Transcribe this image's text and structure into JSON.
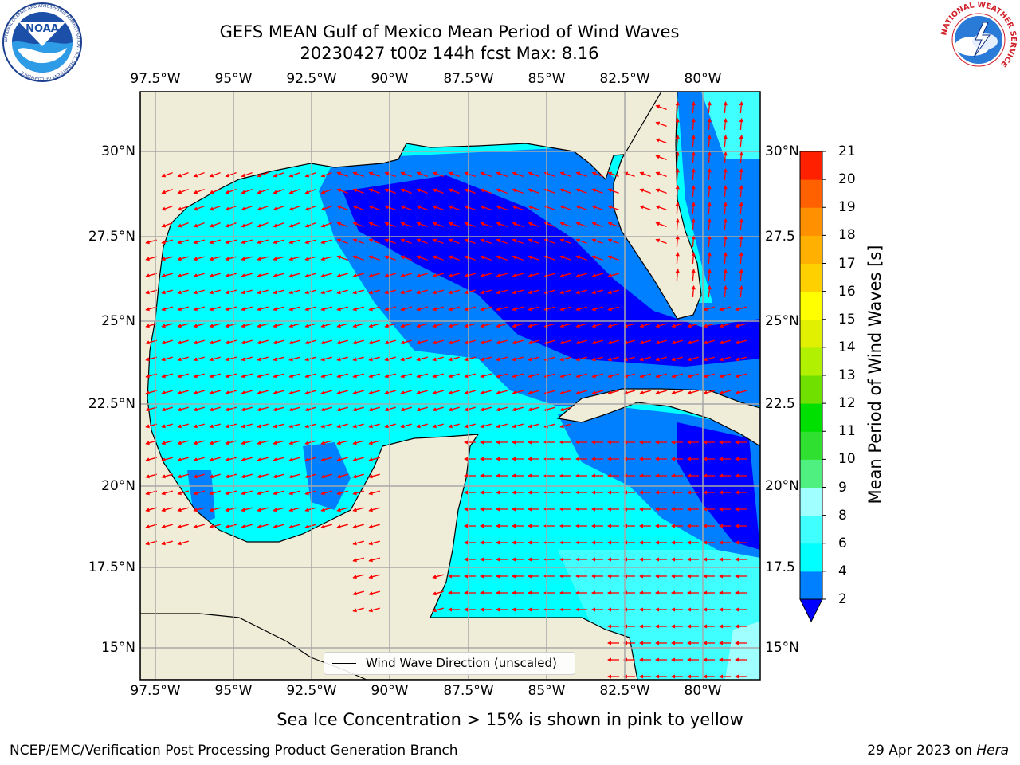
{
  "title": {
    "line1": "GEFS MEAN Gulf of Mexico Mean Period of Wind Waves",
    "line2": "20230427 t00z 144h fcst   Max: 8.16"
  },
  "logos": {
    "noaa_text": "NOAA",
    "noaa_ring": "NATIONAL OCEANIC AND ATMOSPHERIC ADMINISTRATION · U.S. DEPARTMENT OF COMMERCE",
    "nws_ring": "NATIONAL WEATHER SERVICE"
  },
  "map": {
    "lon_ticks": [
      "97.5°W",
      "95°W",
      "92.5°W",
      "90°W",
      "87.5°W",
      "85°W",
      "82.5°W",
      "80°W"
    ],
    "lat_ticks_left": [
      "30°N",
      "27.5°N",
      "25°N",
      "22.5°N",
      "20°N",
      "17.5°N",
      "15°N"
    ],
    "lat_ticks_right": [
      "30°N",
      "27.5",
      "25°N",
      "22.5",
      "20°N",
      "17.5",
      "15°N"
    ],
    "legend_label": "Wind Wave Direction (unscaled)",
    "land_color": "#efecd8",
    "arrow_color": "#ff0000"
  },
  "colorbar": {
    "label": "Mean Period of Wind Waves [s]",
    "ticks": [
      "2",
      "4",
      "6",
      "8",
      "9",
      "10",
      "11",
      "12",
      "13",
      "14",
      "15",
      "16",
      "17",
      "18",
      "19",
      "20",
      "21"
    ],
    "colors": [
      "#0000ff",
      "#0080ff",
      "#00ffff",
      "#40ffff",
      "#a0ffff",
      "#50f080",
      "#30e030",
      "#00e000",
      "#70e000",
      "#b0f000",
      "#e0f000",
      "#ffff00",
      "#ffd000",
      "#ffb000",
      "#ff9000",
      "#ff6000",
      "#ff2000",
      "#ff0000"
    ]
  },
  "footer": {
    "note": "Sea Ice Concentration > 15% is shown in pink to yellow",
    "left": "NCEP/EMC/Verification Post Processing Product Generation Branch",
    "date": "29 Apr 2023 on ",
    "machine": "Hera"
  }
}
